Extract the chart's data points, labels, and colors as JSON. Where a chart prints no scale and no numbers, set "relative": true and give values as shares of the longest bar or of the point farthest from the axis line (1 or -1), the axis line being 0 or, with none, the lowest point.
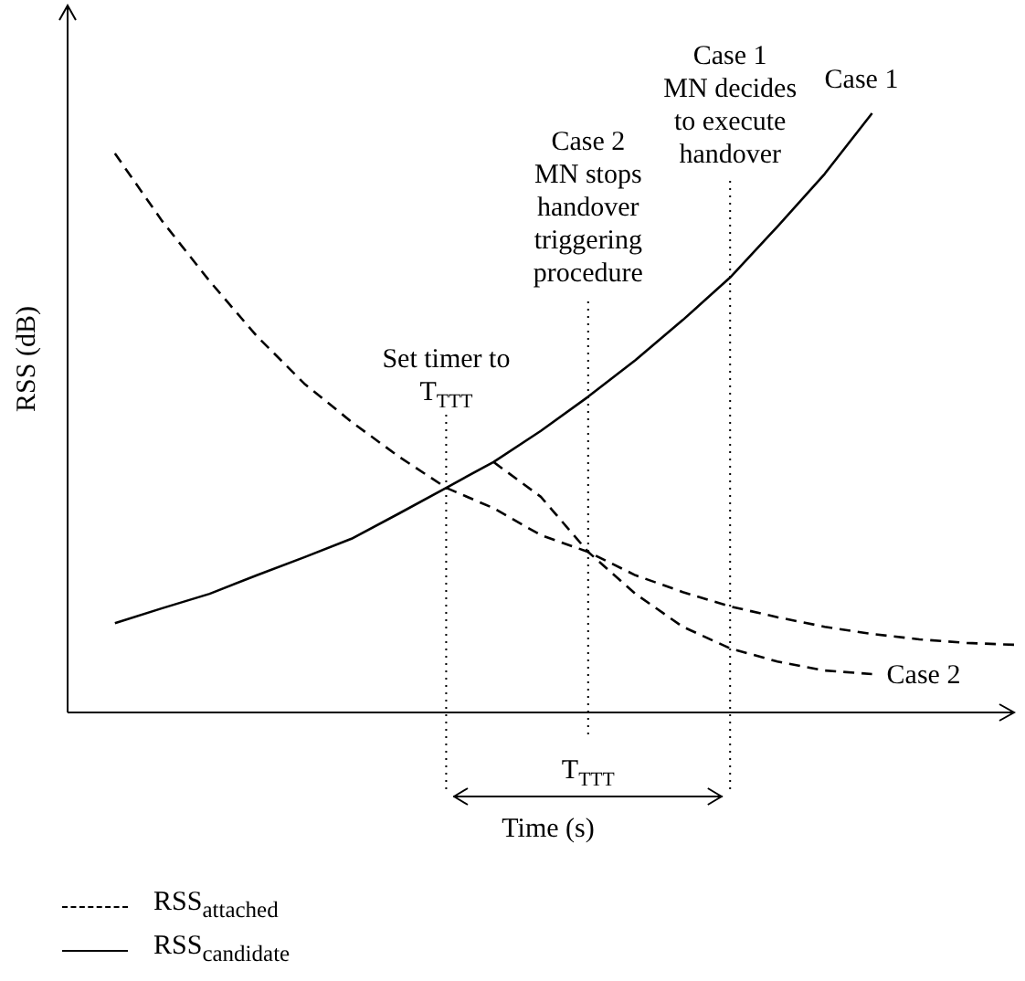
{
  "chart_data": {
    "type": "line",
    "relative": true,
    "tick_labels": false,
    "legend": "bottom left",
    "xlabel": "Time (s)",
    "ylabel": "RSS (dB)",
    "categories": [
      null,
      null,
      null,
      null,
      null,
      null,
      null,
      null,
      null,
      null,
      null,
      null,
      null,
      null,
      null,
      null,
      null,
      null,
      null,
      null,
      null
    ],
    "series": [
      {
        "name": "RSS$_{attached}$",
        "color": "#000000",
        "line_style": "dashed",
        "values": [
          null,
          0.933,
          0.82,
          0.72,
          0.628,
          0.549,
          0.485,
          0.427,
          0.375,
          0.341,
          0.296,
          0.268,
          0.229,
          0.201,
          0.177,
          0.159,
          0.143,
          0.131,
          0.122,
          0.116,
          0.113
        ]
      },
      {
        "name": "RSS$_{candidate}$",
        "color": "#000000",
        "line_style": "solid",
        "values": [
          null,
          0.149,
          0.174,
          0.198,
          0.229,
          0.259,
          0.29,
          0.332,
          0.375,
          0.418,
          0.47,
          0.527,
          0.588,
          0.655,
          0.726,
          0.811,
          0.899,
          1,
          null,
          null,
          null
        ]
      },
      {
        "color": "#000000",
        "line_style": "dashed",
        "values": [
          null,
          null,
          null,
          null,
          null,
          null,
          null,
          null,
          null,
          0.418,
          0.36,
          0.268,
          0.198,
          0.143,
          0.107,
          0.085,
          0.07,
          0.064,
          null,
          null,
          null
        ]
      }
    ],
    "annotations": [
      "Set timer to\nT$_{TTT}$",
      "Case 2\nMN stops\nhandover\ntriggering\nprocedure",
      "Case 1\nMN decides\nto execute\nhandover",
      "Case 1",
      "Case 2",
      "T$_{TTT}$"
    ]
  }
}
